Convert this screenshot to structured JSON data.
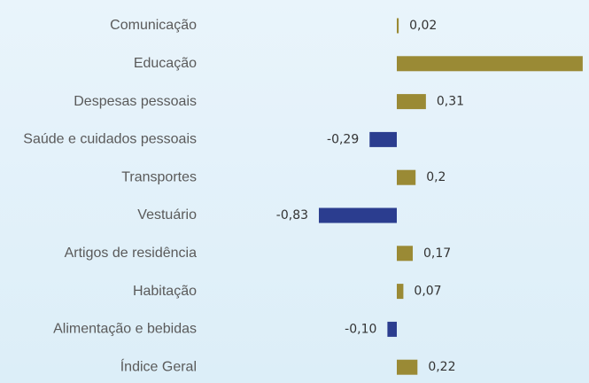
{
  "chart_data": {
    "type": "bar",
    "orientation": "horizontal",
    "categories": [
      "Comunicação",
      "Educação",
      "Despesas pessoais",
      "Saúde e cuidados pessoais",
      "Transportes",
      "Vestuário",
      "Artigos de residência",
      "Habitação",
      "Alimentação e bebidas",
      "Índice Geral"
    ],
    "values": [
      0.02,
      1.98,
      0.31,
      -0.29,
      0.2,
      -0.83,
      0.17,
      0.07,
      -0.1,
      0.22
    ],
    "value_labels": [
      "0,02",
      null,
      "0,31",
      "-0,29",
      "0,2",
      "-0,83",
      "0,17",
      "0,07",
      "-0,10",
      "0,22"
    ],
    "positive_color": "#9a8a35",
    "negative_color": "#2b3d8f"
  }
}
